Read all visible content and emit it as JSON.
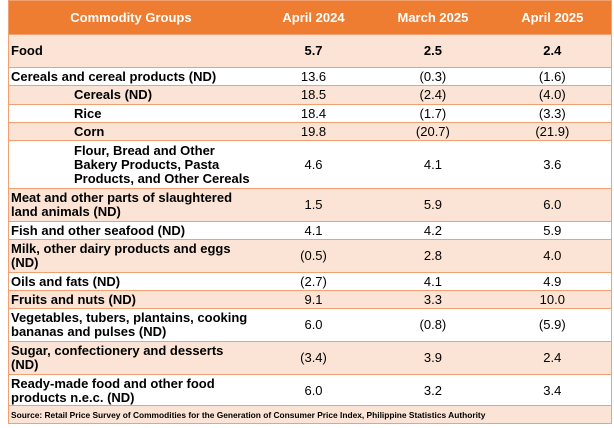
{
  "header": {
    "col0": "Commodity Groups",
    "col1": "April 2024",
    "col2": "March 2025",
    "col3": "April 2025"
  },
  "rows": [
    {
      "label": "Food",
      "v1": "5.7",
      "v2": "2.5",
      "v3": "2.4",
      "style": "food"
    },
    {
      "label": "Cereals and cereal products (ND)",
      "v1": "13.6",
      "v2": "(0.3)",
      "v3": "(1.6)",
      "style": "top"
    },
    {
      "label": "Cereals (ND)",
      "v1": "18.5",
      "v2": "(2.4)",
      "v3": "(4.0)",
      "style": "sub"
    },
    {
      "label": "Rice",
      "v1": "18.4",
      "v2": "(1.7)",
      "v3": "(3.3)",
      "style": "sub"
    },
    {
      "label": "Corn",
      "v1": "19.8",
      "v2": "(20.7)",
      "v3": "(21.9)",
      "style": "sub"
    },
    {
      "label": "Flour, Bread and Other Bakery Products, Pasta Products, and Other Cereals",
      "v1": "4.6",
      "v2": "4.1",
      "v3": "3.6",
      "style": "sub"
    },
    {
      "label": "Meat and other parts of slaughtered land animals (ND)",
      "v1": "1.5",
      "v2": "5.9",
      "v3": "6.0",
      "style": "top"
    },
    {
      "label": "Fish and other seafood (ND)",
      "v1": "4.1",
      "v2": "4.2",
      "v3": "5.9",
      "style": "top"
    },
    {
      "label": "Milk, other dairy products and eggs (ND)",
      "v1": "(0.5)",
      "v2": "2.8",
      "v3": "4.0",
      "style": "top"
    },
    {
      "label": "Oils and fats (ND)",
      "v1": "(2.7)",
      "v2": "4.1",
      "v3": "4.9",
      "style": "top"
    },
    {
      "label": "Fruits and nuts (ND)",
      "v1": "9.1",
      "v2": "3.3",
      "v3": "10.0",
      "style": "top"
    },
    {
      "label": "Vegetables, tubers, plantains, cooking bananas and pulses (ND)",
      "v1": "6.0",
      "v2": "(0.8)",
      "v3": "(5.9)",
      "style": "top"
    },
    {
      "label": "Sugar, confectionery and desserts (ND)",
      "v1": "(3.4)",
      "v2": "3.9",
      "v3": "2.4",
      "style": "top"
    },
    {
      "label": "Ready-made food and other food products n.e.c. (ND)",
      "v1": "6.0",
      "v2": "3.2",
      "v3": "3.4",
      "style": "top"
    }
  ],
  "source": "Source: Retail Price Survey of Commodities for the Generation of Consumer Price Index, Philippine Statistics Authority",
  "colors": {
    "header_bg": "#ee7d31",
    "stripe_bg": "#fbe4d5",
    "border": "#f2a06f"
  }
}
